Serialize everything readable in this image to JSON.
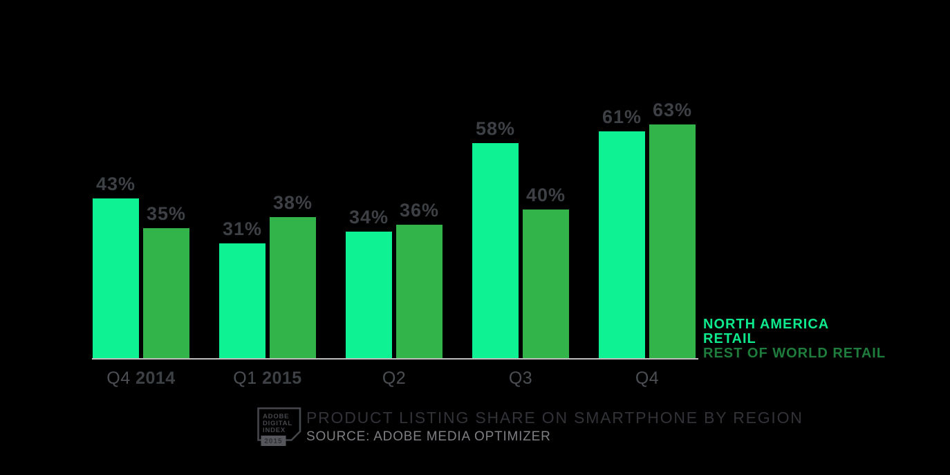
{
  "chart_data": {
    "type": "bar",
    "categories": [
      {
        "quarter": "Q4",
        "year": "2014"
      },
      {
        "quarter": "Q1",
        "year": "2015"
      },
      {
        "quarter": "Q2",
        "year": ""
      },
      {
        "quarter": "Q3",
        "year": ""
      },
      {
        "quarter": "Q4",
        "year": ""
      }
    ],
    "series": [
      {
        "name": "NORTH AMERICA RETAIL",
        "color": "#0EF293",
        "values": [
          43,
          31,
          34,
          58,
          61
        ]
      },
      {
        "name": "REST OF WORLD RETAIL",
        "color": "#33B44A",
        "values": [
          35,
          38,
          36,
          40,
          63
        ]
      }
    ],
    "value_suffix": "%",
    "ylim": [
      0,
      100
    ],
    "grid": false,
    "legend_position": "right",
    "title": "PRODUCT LISTING SHARE ON SMARTPHONE BY REGION",
    "source": "SOURCE: ADOBE MEDIA OPTIMIZER"
  },
  "legend": {
    "items": [
      {
        "lines": [
          "NORTH AMERICA",
          "RETAIL"
        ],
        "color": "#0DE98C"
      },
      {
        "lines": [
          "REST OF WORLD RETAIL"
        ],
        "color": "#1E7D3C"
      }
    ]
  },
  "footer": {
    "title": "PRODUCT LISTING SHARE ON SMARTPHONE BY REGION",
    "source": "SOURCE: ADOBE MEDIA OPTIMIZER",
    "logo": {
      "line1": "ADOBE",
      "line2": "DIGITAL",
      "line3": "INDEX",
      "year": "2015"
    }
  },
  "colors": {
    "background": "#000000",
    "data_label": "#3D4044",
    "axis_line": "#BEBEBE",
    "quarter_label": "#4B4E53",
    "year_label": "#3D4044",
    "title_text": "#323338",
    "source_text": "#7E7F83",
    "logo_outline": "#45474C"
  }
}
